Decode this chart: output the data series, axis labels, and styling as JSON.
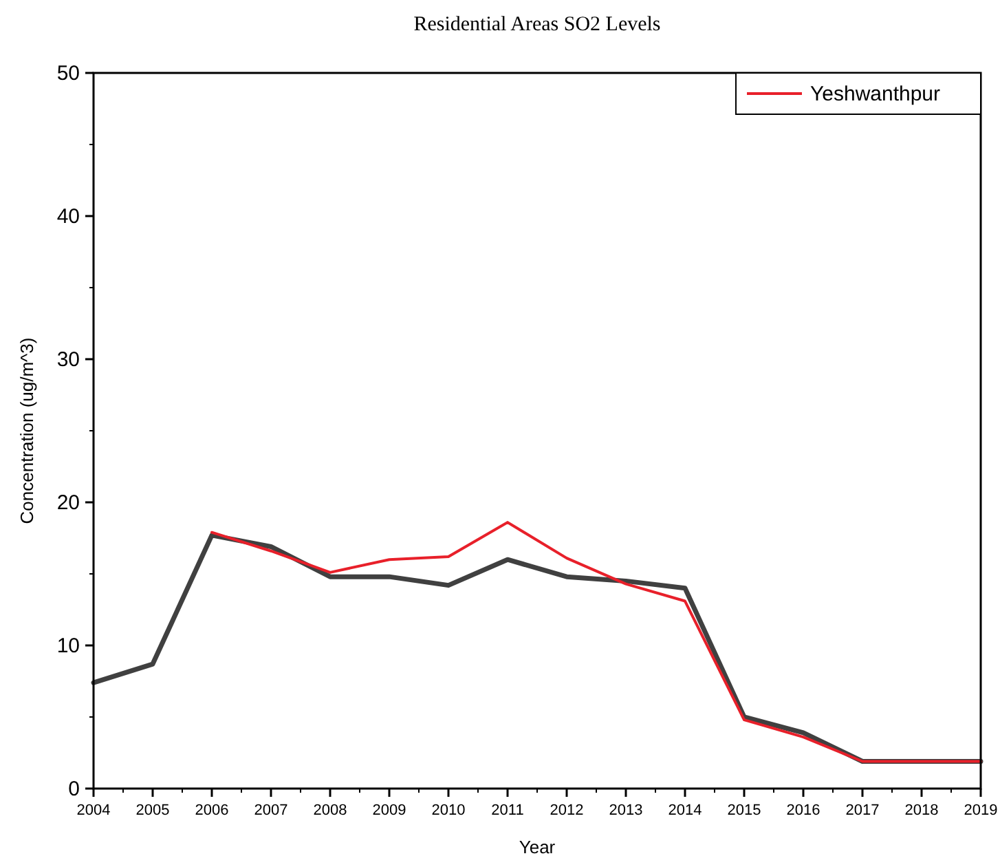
{
  "chart_data": {
    "type": "line",
    "title": "Residential Areas SO2 Levels",
    "xlabel": "Year",
    "ylabel": "Concentration (ug/m^3)",
    "x": [
      2004,
      2005,
      2006,
      2007,
      2008,
      2009,
      2010,
      2011,
      2012,
      2013,
      2014,
      2015,
      2016,
      2017,
      2018,
      2019
    ],
    "series": [
      {
        "color": "#404040",
        "values": [
          7.4,
          8.7,
          17.7,
          16.9,
          14.8,
          14.8,
          14.2,
          16.0,
          14.8,
          14.5,
          14.0,
          5.0,
          3.9,
          1.9,
          1.9,
          1.9
        ]
      },
      {
        "name": "Yeshwanthpur",
        "color": "#e8202a",
        "values": [
          null,
          null,
          17.9,
          16.6,
          15.1,
          16.0,
          16.2,
          18.6,
          16.1,
          14.3,
          13.1,
          4.8,
          3.6,
          1.9,
          1.9,
          1.9
        ]
      }
    ],
    "xlim": [
      2004,
      2019
    ],
    "xticks": [
      2004,
      2005,
      2006,
      2007,
      2008,
      2009,
      2010,
      2011,
      2012,
      2013,
      2014,
      2015,
      2016,
      2017,
      2018,
      2019
    ],
    "ylim": [
      0,
      50
    ],
    "yticks": [
      0,
      10,
      20,
      30,
      40,
      50
    ],
    "legend": "top right",
    "grid": false,
    "marker": "none",
    "line_style": "solid"
  }
}
